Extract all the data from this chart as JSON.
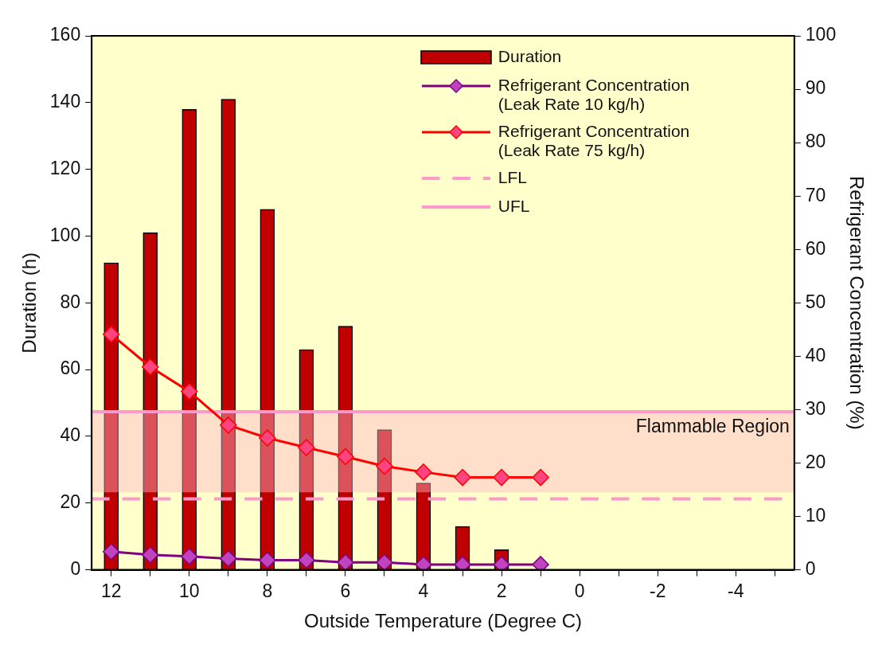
{
  "chart_data": {
    "type": "bar",
    "xlabel": "Outside Temperature (Degree C)",
    "ylabel": "Duration (h)",
    "y2label": "Refrigerant Concentration (%)",
    "x": [
      12,
      11,
      10,
      9,
      8,
      7,
      6,
      5,
      4,
      3,
      2,
      1
    ],
    "series": [
      {
        "name": "Duration",
        "color": "#c00000",
        "values": [
          92,
          101,
          138,
          141,
          108,
          66,
          73,
          42,
          26,
          13,
          6,
          null
        ]
      },
      {
        "name": "Refrigerant Concentration (Leak Rate 10 kg/h)",
        "type": "line",
        "axis": "y2",
        "color": "#800080",
        "values": [
          3.4,
          2.8,
          2.5,
          2.1,
          1.8,
          1.8,
          1.4,
          1.4,
          1.0,
          1.0,
          1.0,
          1.0
        ]
      },
      {
        "name": "Refrigerant Concentration (Leak Rate 75 kg/h)",
        "type": "line",
        "axis": "y2",
        "color": "#ff0000",
        "values": [
          44.1,
          38.0,
          33.4,
          27.1,
          24.7,
          22.9,
          21.2,
          19.4,
          18.3,
          17.3,
          17.3,
          17.3
        ]
      }
    ],
    "xlim": [
      12.5,
      -5.5
    ],
    "xticks": [
      12,
      {
        "value": 11,
        "label": null
      },
      10,
      {
        "value": 9,
        "label": null
      },
      8,
      {
        "value": 7,
        "label": null
      },
      6,
      {
        "value": 5,
        "label": null
      },
      4,
      {
        "value": 3,
        "label": null
      },
      2,
      {
        "value": 1,
        "label": null
      },
      0,
      {
        "value": -1,
        "label": null
      },
      -2,
      {
        "value": -3,
        "label": null
      },
      -4,
      {
        "value": -5,
        "label": null
      }
    ],
    "ylim": [
      0,
      160
    ],
    "yticks": [
      0,
      20,
      40,
      60,
      80,
      100,
      120,
      140,
      160
    ],
    "y2lim": [
      0,
      100
    ],
    "y2ticks": [
      0,
      10,
      20,
      30,
      40,
      50,
      60,
      70,
      80,
      90,
      100
    ],
    "ref_lines": [
      {
        "axis": "y2",
        "value": 13.3,
        "label": "LFL",
        "color": "#ff99cc",
        "line_style": "dashed"
      },
      {
        "axis": "y2",
        "value": 29.6,
        "label": "UFL",
        "color": "#ff99cc",
        "line_style": "solid"
      }
    ],
    "bands": [
      {
        "axis": "y2",
        "from": 14.5,
        "to": 29.6,
        "label": "Flammable Region",
        "color": "#ffb6c8"
      }
    ],
    "marker": "diamond",
    "line_style": "solid",
    "legend": "top right"
  }
}
